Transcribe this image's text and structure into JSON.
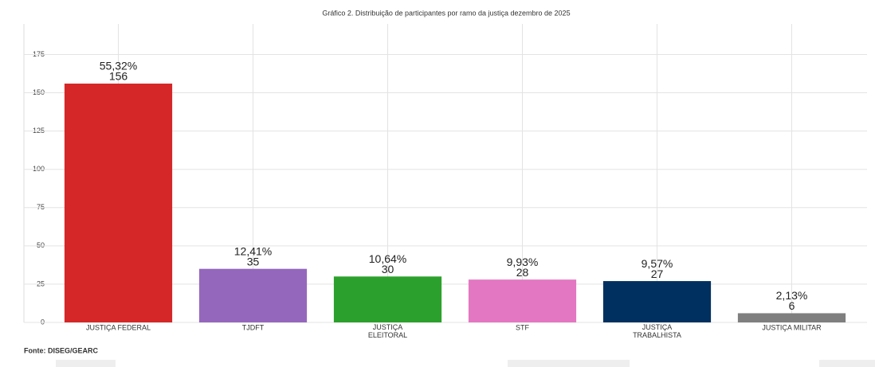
{
  "chart_data": {
    "type": "bar",
    "title": "Gráfico 2. Distribuição de participantes por ramo da justiça dezembro de 2025",
    "categories": [
      "JUSTIÇA FEDERAL",
      "TJDFT",
      "JUSTIÇA\nELEITORAL",
      "STF",
      "JUSTIÇA\nTRABALHISTA",
      "JUSTIÇA MILITAR"
    ],
    "values": [
      156,
      35,
      30,
      28,
      27,
      6
    ],
    "percent_labels": [
      "55,32%",
      "12,41%",
      "10,64%",
      "9,93%",
      "9,57%",
      "2,13%"
    ],
    "colors": [
      "#d62728",
      "#9467bd",
      "#2ca02c",
      "#e377c2",
      "#00305f",
      "#7f7f7f"
    ],
    "ylim": [
      0,
      195
    ],
    "yticks": [
      0,
      25,
      50,
      75,
      100,
      125,
      150,
      175
    ],
    "grid": true,
    "source": "Fonte: DISEG/GEARC"
  }
}
